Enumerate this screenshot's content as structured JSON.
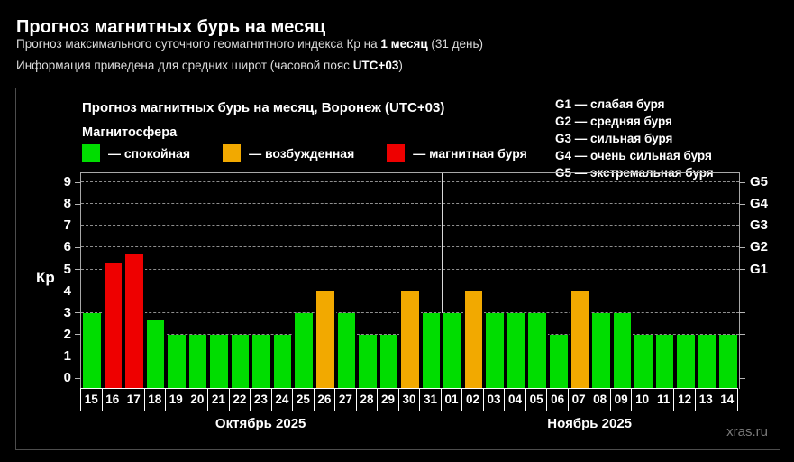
{
  "header": {
    "title": "Прогноз магнитных бурь на месяц",
    "line1": {
      "prefix": "Прогноз максимального суточного геомагнитного индекса Кр на ",
      "bold": "1 месяц",
      "suffix": " (31 день)"
    },
    "line2": {
      "prefix": "Информация приведена для средних широт (часовой пояс ",
      "bold": "UTC+03",
      "suffix": ")"
    }
  },
  "chart": {
    "title": "Прогноз магнитных бурь на месяц, Воронеж (UTC+03)",
    "legend_title": "Магнитосфера",
    "legend": [
      {
        "status": "quiet",
        "label": "— спокойная"
      },
      {
        "status": "excited",
        "label": "— возбужденная"
      },
      {
        "status": "storm",
        "label": "— магнитная буря"
      }
    ],
    "g_legend": [
      "G1 — слабая буря",
      "G2 — средняя буря",
      "G3 — сильная буря",
      "G4 — очень сильная буря",
      "G5 — экстремальная буря"
    ],
    "ylabel": "Кр",
    "watermark": "xras.ru"
  },
  "colors": {
    "status": {
      "quiet": "#00dd00",
      "excited": "#f2a900",
      "storm": "#ee0000"
    },
    "gridline": "#8f8f8f",
    "axis": "#a8a8a8",
    "day_box_border": "#ffffff"
  },
  "chart_data": {
    "type": "bar",
    "title": "Прогноз магнитных бурь на месяц, Воронеж (UTC+03)",
    "xlabel": "",
    "ylabel": "Кр",
    "ylim": [
      0,
      9
    ],
    "y_ticks": [
      0,
      1,
      2,
      3,
      4,
      5,
      6,
      7,
      8,
      9
    ],
    "grid": "horizontal dashed",
    "legend_position": "top-left",
    "categories": [
      "15",
      "16",
      "17",
      "18",
      "19",
      "20",
      "21",
      "22",
      "23",
      "24",
      "25",
      "26",
      "27",
      "28",
      "29",
      "30",
      "31",
      "01",
      "02",
      "03",
      "04",
      "05",
      "06",
      "07",
      "08",
      "09",
      "10",
      "11",
      "12",
      "13",
      "14"
    ],
    "values": [
      3,
      5.33,
      5.67,
      2.67,
      2,
      2,
      2,
      2,
      2,
      2,
      3,
      4,
      3,
      2,
      2,
      4,
      3,
      3,
      4,
      3,
      3,
      3,
      2,
      4,
      3,
      3,
      2,
      2,
      2,
      2,
      2
    ],
    "statuses": [
      "quiet",
      "storm",
      "storm",
      "quiet",
      "quiet",
      "quiet",
      "quiet",
      "quiet",
      "quiet",
      "quiet",
      "quiet",
      "excited",
      "quiet",
      "quiet",
      "quiet",
      "excited",
      "quiet",
      "quiet",
      "excited",
      "quiet",
      "quiet",
      "quiet",
      "quiet",
      "excited",
      "quiet",
      "quiet",
      "quiet",
      "quiet",
      "quiet",
      "quiet",
      "quiet"
    ],
    "right_axis_labels": [
      {
        "level": 5,
        "label": "G1"
      },
      {
        "level": 6,
        "label": "G2"
      },
      {
        "level": 7,
        "label": "G3"
      },
      {
        "level": 8,
        "label": "G4"
      },
      {
        "level": 9,
        "label": "G5"
      }
    ],
    "months": [
      {
        "label": "Октябрь 2025",
        "days": 17
      },
      {
        "label": "Ноябрь 2025",
        "days": 14
      }
    ],
    "separator_after_day_index": 16
  }
}
